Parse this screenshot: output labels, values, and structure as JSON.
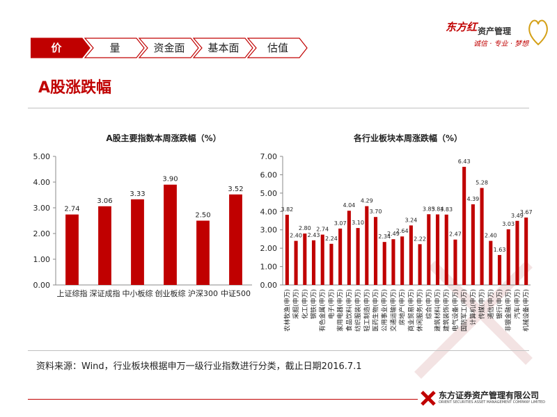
{
  "nav": {
    "tabs": [
      {
        "label": "价",
        "active": true
      },
      {
        "label": "量",
        "active": false
      },
      {
        "label": "资金面",
        "active": false
      },
      {
        "label": "基本面",
        "active": false
      },
      {
        "label": "估值",
        "active": false
      }
    ]
  },
  "brand": {
    "logo_text": "东方红",
    "logo_sub": "资产管理",
    "slogan": "诚信 · 专业 · 梦想"
  },
  "page_title": "A股涨跌幅",
  "source_note": "资料来源：Wind，行业板块根据申万一级行业指数进行分类，截止日期2016.7.1",
  "footer": {
    "company_cn": "东方证券资产管理有限公司",
    "company_en": "ORIENT SECURITIES ASSET MANAGEMENT COMPANY LIMITED"
  },
  "colors": {
    "accent": "#c00000",
    "bar": "#c00000",
    "nav_border": "#c00000",
    "nav_fill_inactive": "#ffffff"
  },
  "chart_data": [
    {
      "type": "bar",
      "title": "A股主要指数本周涨跌幅（%）",
      "categories": [
        "上证综指",
        "深证成指",
        "中小板综",
        "创业板综",
        "沪深300",
        "中证500"
      ],
      "values": [
        2.74,
        3.06,
        3.33,
        3.9,
        2.5,
        3.52
      ],
      "value_labels": [
        "2.74",
        "3.06",
        "3.33",
        "3.90",
        "2.50",
        "3.52"
      ],
      "ylim": [
        0,
        5
      ],
      "yticks": [
        "0.00",
        "1.00",
        "2.00",
        "3.00",
        "4.00",
        "5.00"
      ],
      "grid": false,
      "legend": "none"
    },
    {
      "type": "bar",
      "title": "各行业板块本周涨跌幅（%）",
      "categories": [
        "农林牧渔(申万)",
        "采掘(申万)",
        "化工(申万)",
        "钢铁(申万)",
        "有色金属(申万)",
        "电子(申万)",
        "家用电器(申万)",
        "食品饮料(申万)",
        "纺织服装(申万)",
        "轻工制造(申万)",
        "医药生物(申万)",
        "公用事业(申万)",
        "交通运输(申万)",
        "房地产(申万)",
        "商业贸易(申万)",
        "休闲服务(申万)",
        "综合(申万)",
        "建筑材料(申万)",
        "建筑装饰(申万)",
        "电气设备(申万)",
        "国防军工(申万)",
        "计算机(申万)",
        "传媒(申万)",
        "通信(申万)",
        "银行(申万)",
        "非银金融(申万)",
        "汽车(申万)",
        "机械设备(申万)"
      ],
      "values": [
        3.82,
        2.4,
        2.8,
        2.43,
        2.74,
        2.24,
        3.07,
        4.04,
        3.1,
        4.29,
        3.7,
        2.34,
        2.49,
        2.64,
        3.24,
        2.22,
        3.85,
        3.84,
        3.83,
        2.47,
        6.43,
        4.39,
        5.28,
        2.4,
        1.63,
        3.03,
        3.49,
        3.67
      ],
      "value_labels": [
        "3.82",
        "2.40",
        "2.80",
        "2.43",
        "2.74",
        "2.24",
        "3.07",
        "4.04",
        "3.10",
        "4.29",
        "3.70",
        "2.34",
        "2.49",
        "2.64",
        "3.24",
        "2.22",
        "3.85",
        "3.84",
        "3.83",
        "2.47",
        "6.43",
        "4.39",
        "5.28",
        "2.40",
        "1.63",
        "3.03",
        "3.49",
        "3.67"
      ],
      "ylim": [
        0,
        7
      ],
      "yticks": [
        "0.00",
        "1.00",
        "2.00",
        "3.00",
        "4.00",
        "5.00",
        "6.00",
        "7.00"
      ],
      "grid": false,
      "legend": "none"
    }
  ]
}
